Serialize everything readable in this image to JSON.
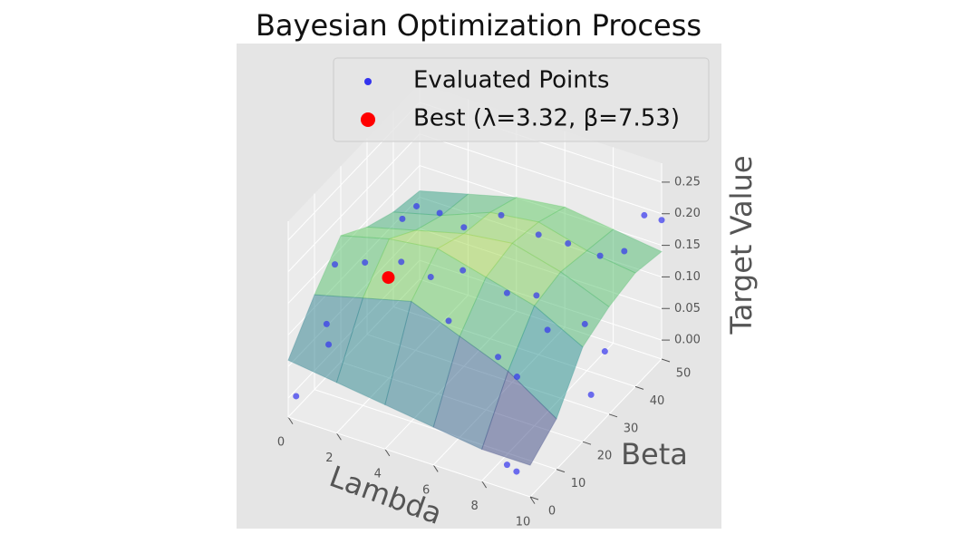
{
  "chart_data": {
    "type": "surface3d",
    "title": "Bayesian Optimization Process",
    "xlabel": "Lambda",
    "ylabel": "Beta",
    "zlabel": "Target Value",
    "xlim": [
      0,
      10
    ],
    "ylim": [
      0,
      50
    ],
    "zlim": [
      -0.03,
      0.28
    ],
    "xticks": [
      0,
      2,
      4,
      6,
      8,
      10
    ],
    "yticks": [
      0,
      10,
      20,
      30,
      40,
      50
    ],
    "zticks": [
      {
        "value": 0,
        "label": "0.00"
      },
      {
        "value": 0.05,
        "label": "0.05"
      },
      {
        "value": 0.1,
        "label": "0.10"
      },
      {
        "value": 0.15,
        "label": "0.15"
      },
      {
        "value": 0.2,
        "label": "0.20"
      },
      {
        "value": 0.25,
        "label": "0.25"
      }
    ],
    "surface": {
      "x": [
        0,
        2,
        4,
        6,
        8,
        10
      ],
      "y": [
        0,
        10,
        20,
        30,
        40,
        50
      ],
      "z": [
        [
          0.06,
          0.12,
          0.17,
          0.14,
          0.12,
          0.11
        ],
        [
          0.05,
          0.14,
          0.19,
          0.16,
          0.14,
          0.13
        ],
        [
          0.04,
          0.16,
          0.2,
          0.18,
          0.17,
          0.15
        ],
        [
          0.03,
          0.13,
          0.18,
          0.19,
          0.18,
          0.16
        ],
        [
          0.02,
          0.1,
          0.16,
          0.17,
          0.16,
          0.15
        ],
        [
          0.02,
          0.05,
          0.12,
          0.14,
          0.15,
          0.14
        ]
      ]
    },
    "series": [
      {
        "name": "Evaluated Points",
        "color": "#3333ee",
        "x": [
          0,
          0.5,
          0.3,
          1,
          0.8,
          2,
          3,
          4,
          5,
          2.5,
          3.5,
          4.5,
          6,
          7,
          6.5,
          7.5,
          8,
          9,
          9.5,
          9.8,
          8.5,
          9,
          9,
          9.5,
          10,
          8,
          5,
          1.5,
          6,
          7
        ],
        "y": [
          3,
          10,
          15,
          20,
          8,
          25,
          30,
          30,
          35,
          20,
          22,
          25,
          28,
          30,
          20,
          18,
          25,
          30,
          33,
          25,
          5,
          4,
          45,
          48,
          50,
          45,
          15,
          35,
          40,
          42
        ],
        "z": [
          -0.01,
          0.08,
          0.15,
          0.14,
          0.06,
          0.2,
          0.2,
          0.19,
          0.2,
          0.16,
          0.14,
          0.15,
          0.12,
          0.12,
          0.06,
          0.05,
          0.1,
          0.1,
          0.05,
          0.02,
          -0.02,
          -0.02,
          0.15,
          0.2,
          0.19,
          0.13,
          0.12,
          0.17,
          0.16,
          0.15
        ]
      },
      {
        "name": "Best (λ=3.32, β=7.53)",
        "color": "#ff0000",
        "x": [
          3.32
        ],
        "y": [
          7.53
        ],
        "z": [
          0.2
        ]
      }
    ]
  }
}
